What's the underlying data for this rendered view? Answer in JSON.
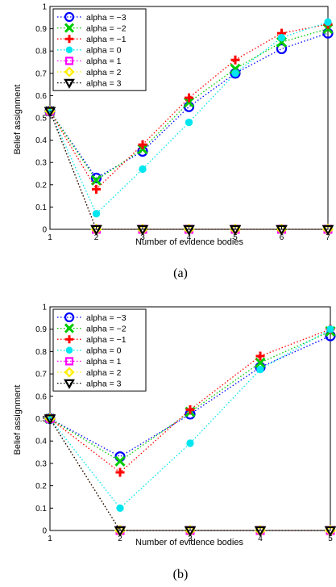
{
  "chart_data": [
    {
      "type": "line",
      "caption": "(a)",
      "xlabel": "Number of evidence bodies",
      "ylabel": "Belief assignment",
      "x": [
        1,
        2,
        3,
        4,
        5,
        6,
        7
      ],
      "xticks": [
        "1",
        "2",
        "3",
        "4",
        "5",
        "6",
        "7"
      ],
      "xlim": [
        1,
        7
      ],
      "ylim": [
        0,
        1
      ],
      "yticks": [
        "0",
        "0.1",
        "0.2",
        "0.3",
        "0.4",
        "0.5",
        "0.6",
        "0.7",
        "0.8",
        "0.9",
        "1"
      ],
      "grid": false,
      "legend_position": "top-left",
      "series": [
        {
          "name": "alpha = −3",
          "color": "#0000ff",
          "marker": "circle",
          "values": [
            0.53,
            0.23,
            0.35,
            0.55,
            0.7,
            0.81,
            0.88
          ]
        },
        {
          "name": "alpha = −2",
          "color": "#00cc00",
          "marker": "x",
          "values": [
            0.53,
            0.22,
            0.36,
            0.57,
            0.72,
            0.84,
            0.9
          ]
        },
        {
          "name": "alpha = −1",
          "color": "#ff0000",
          "marker": "plus",
          "values": [
            0.53,
            0.18,
            0.38,
            0.59,
            0.76,
            0.88,
            0.92
          ]
        },
        {
          "name": "alpha = 0",
          "color": "#00e5ee",
          "marker": "dot",
          "values": [
            0.53,
            0.07,
            0.27,
            0.48,
            0.7,
            0.86,
            0.93
          ]
        },
        {
          "name": "alpha = 1",
          "color": "#ff00ff",
          "marker": "square",
          "values": [
            0.53,
            0.0,
            0.0,
            0.0,
            0.0,
            0.0,
            0.0
          ]
        },
        {
          "name": "alpha = 2",
          "color": "#ffee00",
          "marker": "diamond",
          "values": [
            0.53,
            0.0,
            0.0,
            0.0,
            0.0,
            0.0,
            0.0
          ]
        },
        {
          "name": "alpha = 3",
          "color": "#000000",
          "marker": "triangle",
          "values": [
            0.53,
            0.0,
            0.0,
            0.0,
            0.0,
            0.0,
            0.0
          ]
        }
      ]
    },
    {
      "type": "line",
      "caption": "(b)",
      "xlabel": "Number of evidence bodies",
      "ylabel": "Belief assignment",
      "x": [
        1,
        2,
        3,
        4,
        5
      ],
      "xticks": [
        "1",
        "2",
        "3",
        "4",
        "5"
      ],
      "xlim": [
        1,
        5
      ],
      "ylim": [
        0,
        1
      ],
      "yticks": [
        "0",
        "0.1",
        "0.2",
        "0.3",
        "0.4",
        "0.5",
        "0.6",
        "0.7",
        "0.8",
        "0.9",
        "1"
      ],
      "grid": false,
      "legend_position": "top-left",
      "series": [
        {
          "name": "alpha = −3",
          "color": "#0000ff",
          "marker": "circle",
          "values": [
            0.5,
            0.33,
            0.52,
            0.73,
            0.87
          ]
        },
        {
          "name": "alpha = −2",
          "color": "#00cc00",
          "marker": "x",
          "values": [
            0.5,
            0.31,
            0.53,
            0.75,
            0.89
          ]
        },
        {
          "name": "alpha = −1",
          "color": "#ff0000",
          "marker": "plus",
          "values": [
            0.5,
            0.26,
            0.54,
            0.78,
            0.9
          ]
        },
        {
          "name": "alpha = 0",
          "color": "#00e5ee",
          "marker": "dot",
          "values": [
            0.5,
            0.1,
            0.39,
            0.72,
            0.9
          ]
        },
        {
          "name": "alpha = 1",
          "color": "#ff00ff",
          "marker": "square",
          "values": [
            0.5,
            0.0,
            0.0,
            0.0,
            0.0
          ]
        },
        {
          "name": "alpha = 2",
          "color": "#ffee00",
          "marker": "diamond",
          "values": [
            0.5,
            0.0,
            0.0,
            0.0,
            0.0
          ]
        },
        {
          "name": "alpha = 3",
          "color": "#000000",
          "marker": "triangle",
          "values": [
            0.5,
            0.0,
            0.0,
            0.0,
            0.0
          ]
        }
      ]
    }
  ]
}
